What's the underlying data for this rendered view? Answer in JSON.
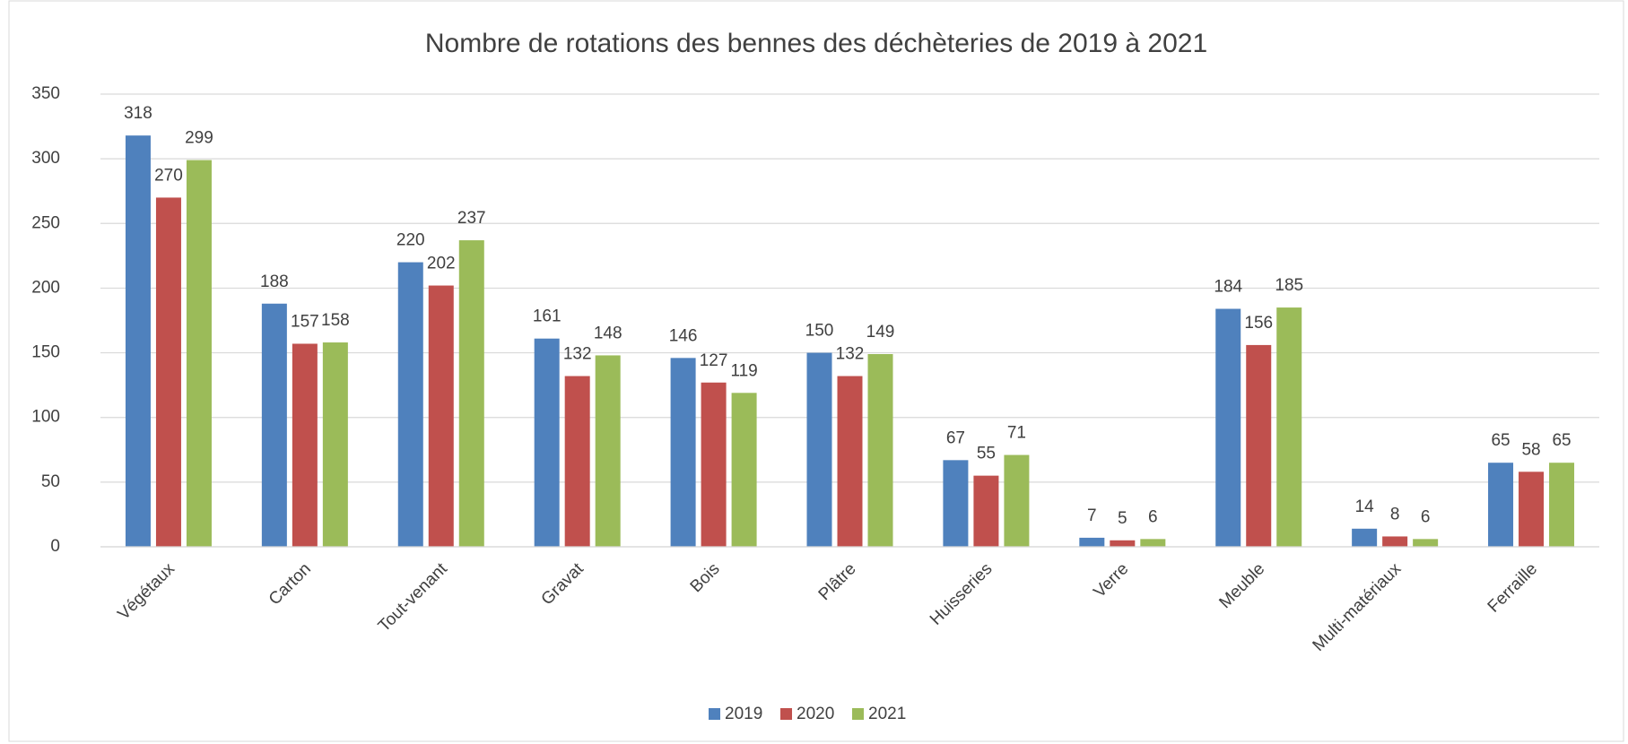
{
  "chart_data": {
    "type": "bar",
    "title": "Nombre de rotations des bennes des déchèteries de 2019 à 2021",
    "categories": [
      "Végétaux",
      "Carton",
      "Tout-venant",
      "Gravat",
      "Bois",
      "Plâtre",
      "Huisseries",
      "Verre",
      "Meuble",
      "Multi-matériaux",
      "Ferraille"
    ],
    "series": [
      {
        "name": "2019",
        "color": "#4f81bd",
        "values": [
          318,
          188,
          220,
          161,
          146,
          150,
          67,
          7,
          184,
          14,
          65
        ]
      },
      {
        "name": "2020",
        "color": "#c0504d",
        "values": [
          270,
          157,
          202,
          132,
          127,
          132,
          55,
          5,
          156,
          8,
          58
        ]
      },
      {
        "name": "2021",
        "color": "#9bbb59",
        "values": [
          299,
          158,
          237,
          148,
          119,
          149,
          71,
          6,
          185,
          6,
          65
        ]
      }
    ],
    "ylim": [
      0,
      350
    ],
    "yticks": [
      0,
      50,
      100,
      150,
      200,
      250,
      300,
      350
    ],
    "grid": true,
    "legend": "bottom"
  }
}
